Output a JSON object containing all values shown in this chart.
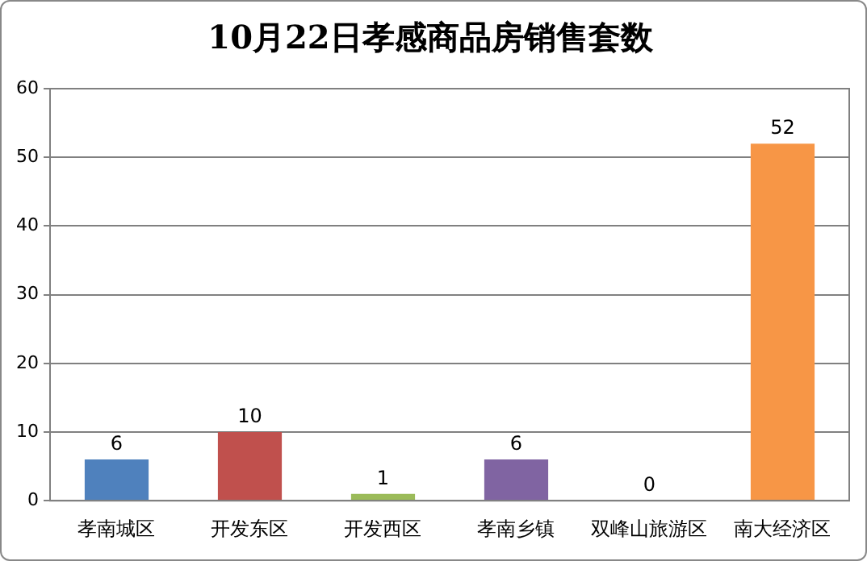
{
  "chart_data": {
    "type": "bar",
    "title": "10月22日孝感商品房销售套数",
    "categories": [
      "孝南城区",
      "开发东区",
      "开发西区",
      "孝南乡镇",
      "双峰山旅游区",
      "南大经济区"
    ],
    "values": [
      6,
      10,
      1,
      6,
      0,
      52
    ],
    "colors": [
      "#4f81bd",
      "#c0504d",
      "#9bbb59",
      "#8064a2",
      "#4bacc6",
      "#f79646"
    ],
    "ylim": [
      0,
      60
    ],
    "yticks": [
      0,
      10,
      20,
      30,
      40,
      50,
      60
    ],
    "grid": "y",
    "data_labels": true,
    "legend": false
  }
}
